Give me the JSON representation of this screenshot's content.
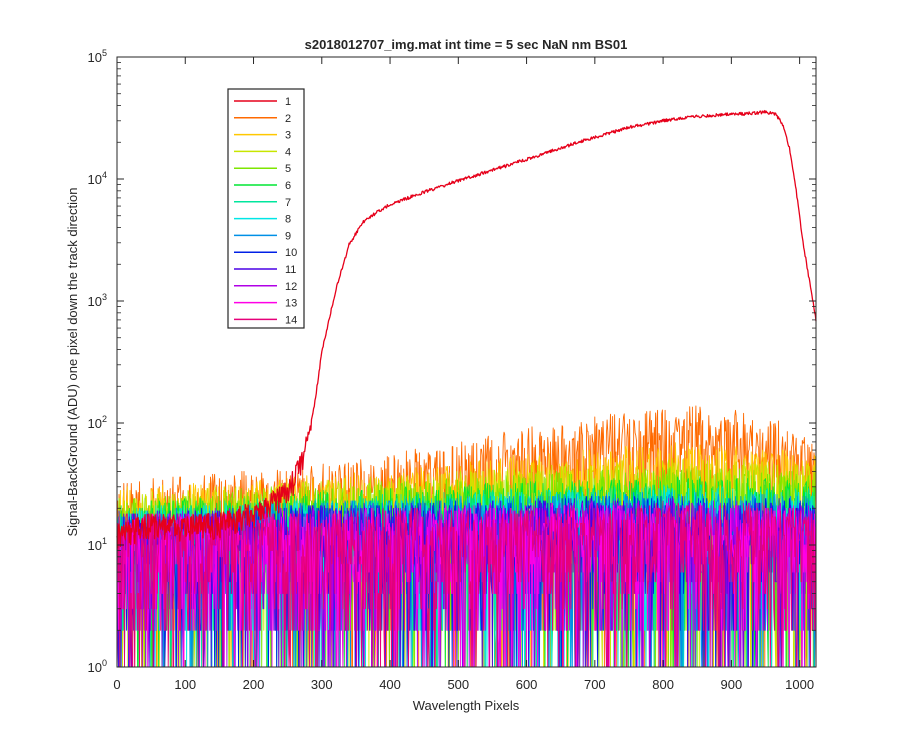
{
  "chart_data": {
    "type": "line",
    "title": "s2018012707_img.mat int time = 5 sec  NaN nm BS01",
    "xlabel": "Wavelength Pixels",
    "ylabel": "Signal-BackGround (ADU) one pixel down the track direction",
    "xlim": [
      0,
      1024
    ],
    "ylim": [
      1,
      100000
    ],
    "yscale": "log",
    "grid": false,
    "legend_position": "top-left",
    "x_ticks": [
      0,
      100,
      200,
      300,
      400,
      500,
      600,
      700,
      800,
      900,
      1000
    ],
    "y_ticks": [
      {
        "base": "10",
        "exp": "0"
      },
      {
        "base": "10",
        "exp": "1"
      },
      {
        "base": "10",
        "exp": "2"
      },
      {
        "base": "10",
        "exp": "3"
      },
      {
        "base": "10",
        "exp": "4"
      },
      {
        "base": "10",
        "exp": "5"
      }
    ],
    "series": [
      {
        "name": "1",
        "color": "#e6001a",
        "points": [
          [
            0,
            12
          ],
          [
            50,
            15
          ],
          [
            100,
            14
          ],
          [
            150,
            15
          ],
          [
            200,
            18
          ],
          [
            240,
            25
          ],
          [
            260,
            35
          ],
          [
            270,
            45
          ],
          [
            280,
            75
          ],
          [
            290,
            150
          ],
          [
            300,
            380
          ],
          [
            320,
            1200
          ],
          [
            340,
            2900
          ],
          [
            360,
            4400
          ],
          [
            380,
            5300
          ],
          [
            400,
            6200
          ],
          [
            450,
            7800
          ],
          [
            500,
            9700
          ],
          [
            550,
            11800
          ],
          [
            600,
            14500
          ],
          [
            650,
            18000
          ],
          [
            700,
            22000
          ],
          [
            750,
            26500
          ],
          [
            800,
            30000
          ],
          [
            850,
            32500
          ],
          [
            900,
            34000
          ],
          [
            930,
            34500
          ],
          [
            950,
            35500
          ],
          [
            965,
            34000
          ],
          [
            975,
            28000
          ],
          [
            985,
            18000
          ],
          [
            995,
            8000
          ],
          [
            1005,
            3000
          ],
          [
            1015,
            1400
          ],
          [
            1024,
            700
          ]
        ]
      },
      {
        "name": "2",
        "color": "#ff6a00",
        "points": [
          [
            0,
            18
          ],
          [
            100,
            20
          ],
          [
            200,
            22
          ],
          [
            300,
            25
          ],
          [
            400,
            30
          ],
          [
            500,
            38
          ],
          [
            600,
            50
          ],
          [
            700,
            62
          ],
          [
            800,
            72
          ],
          [
            850,
            75
          ],
          [
            900,
            70
          ],
          [
            950,
            62
          ],
          [
            1000,
            48
          ],
          [
            1024,
            42
          ]
        ]
      },
      {
        "name": "3",
        "color": "#ffc800",
        "points": [
          [
            0,
            16
          ],
          [
            200,
            19
          ],
          [
            400,
            22
          ],
          [
            600,
            30
          ],
          [
            800,
            38
          ],
          [
            1000,
            32
          ],
          [
            1024,
            30
          ]
        ]
      },
      {
        "name": "4",
        "color": "#c8e600",
        "points": [
          [
            0,
            14
          ],
          [
            200,
            17
          ],
          [
            400,
            20
          ],
          [
            600,
            24
          ],
          [
            800,
            28
          ],
          [
            1000,
            26
          ],
          [
            1024,
            25
          ]
        ]
      },
      {
        "name": "5",
        "color": "#7ee600",
        "points": [
          [
            0,
            13
          ],
          [
            200,
            16
          ],
          [
            400,
            18
          ],
          [
            600,
            21
          ],
          [
            800,
            24
          ],
          [
            1000,
            22
          ],
          [
            1024,
            22
          ]
        ]
      },
      {
        "name": "6",
        "color": "#00e633",
        "points": [
          [
            0,
            12
          ],
          [
            200,
            14
          ],
          [
            400,
            16
          ],
          [
            600,
            18
          ],
          [
            800,
            20
          ],
          [
            1000,
            19
          ],
          [
            1024,
            18
          ]
        ]
      },
      {
        "name": "7",
        "color": "#00e69d",
        "points": [
          [
            0,
            11
          ],
          [
            200,
            13
          ],
          [
            400,
            14
          ],
          [
            600,
            16
          ],
          [
            800,
            17
          ],
          [
            1000,
            16
          ],
          [
            1024,
            16
          ]
        ]
      },
      {
        "name": "8",
        "color": "#00e6e6",
        "points": [
          [
            0,
            11
          ],
          [
            200,
            12
          ],
          [
            400,
            13
          ],
          [
            600,
            15
          ],
          [
            800,
            16
          ],
          [
            1000,
            15
          ],
          [
            1024,
            15
          ]
        ]
      },
      {
        "name": "9",
        "color": "#0090e6",
        "points": [
          [
            0,
            10
          ],
          [
            200,
            12
          ],
          [
            400,
            13
          ],
          [
            600,
            14
          ],
          [
            800,
            15
          ],
          [
            1000,
            14
          ],
          [
            1024,
            14
          ]
        ]
      },
      {
        "name": "10",
        "color": "#0020e6",
        "points": [
          [
            0,
            10
          ],
          [
            200,
            11
          ],
          [
            400,
            12
          ],
          [
            600,
            13
          ],
          [
            800,
            14
          ],
          [
            1000,
            13
          ],
          [
            1024,
            13
          ]
        ]
      },
      {
        "name": "11",
        "color": "#4a00e6",
        "points": [
          [
            0,
            10
          ],
          [
            200,
            11
          ],
          [
            400,
            12
          ],
          [
            600,
            13
          ],
          [
            800,
            13
          ],
          [
            1000,
            12
          ],
          [
            1024,
            12
          ]
        ]
      },
      {
        "name": "12",
        "color": "#b000e6",
        "points": [
          [
            0,
            10
          ],
          [
            200,
            11
          ],
          [
            400,
            11
          ],
          [
            600,
            12
          ],
          [
            800,
            13
          ],
          [
            1000,
            12
          ],
          [
            1024,
            12
          ]
        ]
      },
      {
        "name": "13",
        "color": "#ff00e6",
        "points": [
          [
            0,
            10
          ],
          [
            200,
            10
          ],
          [
            400,
            11
          ],
          [
            600,
            12
          ],
          [
            800,
            12
          ],
          [
            1000,
            12
          ],
          [
            1024,
            11
          ]
        ]
      },
      {
        "name": "14",
        "color": "#e6007a",
        "points": [
          [
            0,
            10
          ],
          [
            200,
            10
          ],
          [
            400,
            11
          ],
          [
            600,
            11
          ],
          [
            800,
            12
          ],
          [
            1000,
            11
          ],
          [
            1024,
            11
          ]
        ]
      }
    ]
  }
}
